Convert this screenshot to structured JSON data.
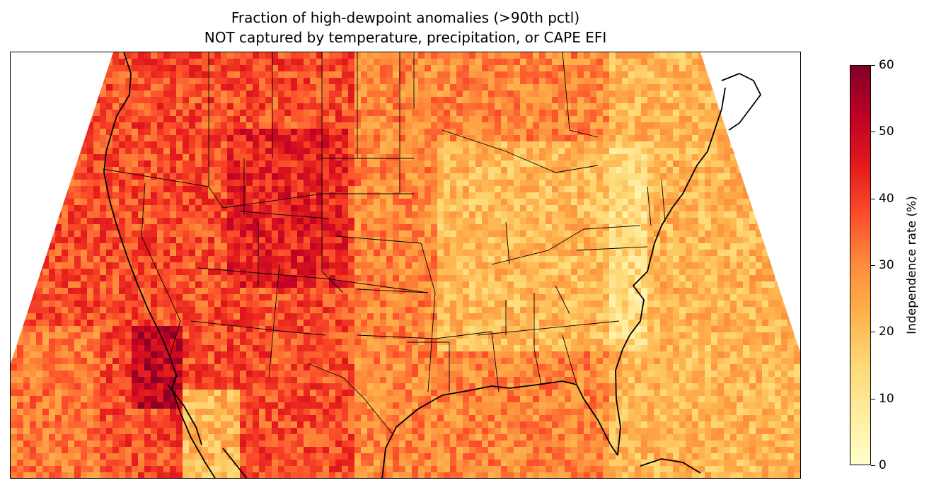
{
  "title_line1": "Fraction of high-dewpoint anomalies (>90th pctl)",
  "title_line2": "NOT captured by temperature, precipitation, or CAPE EFI",
  "colorbar": {
    "label": "Independence rate (%)",
    "min": 0,
    "max": 60,
    "ticks": [
      "0",
      "10",
      "20",
      "30",
      "40",
      "50",
      "60"
    ],
    "colormap": "YlOrRd",
    "colors": [
      "#ffffcc",
      "#ffeda0",
      "#fed976",
      "#feb24c",
      "#fd8d3c",
      "#fc4e2a",
      "#e31a1c",
      "#bd0026",
      "#800026"
    ]
  },
  "map": {
    "region": "Contiguous United States",
    "projection": "Lambert Conformal",
    "features": [
      "coastlines",
      "state borders",
      "country borders"
    ],
    "typical_rates": {
      "western_interior": "35-45",
      "gulf_of_california": "50-55",
      "great_lakes_midwest": "15-25",
      "atlantic_offshore": "10-20"
    }
  }
}
